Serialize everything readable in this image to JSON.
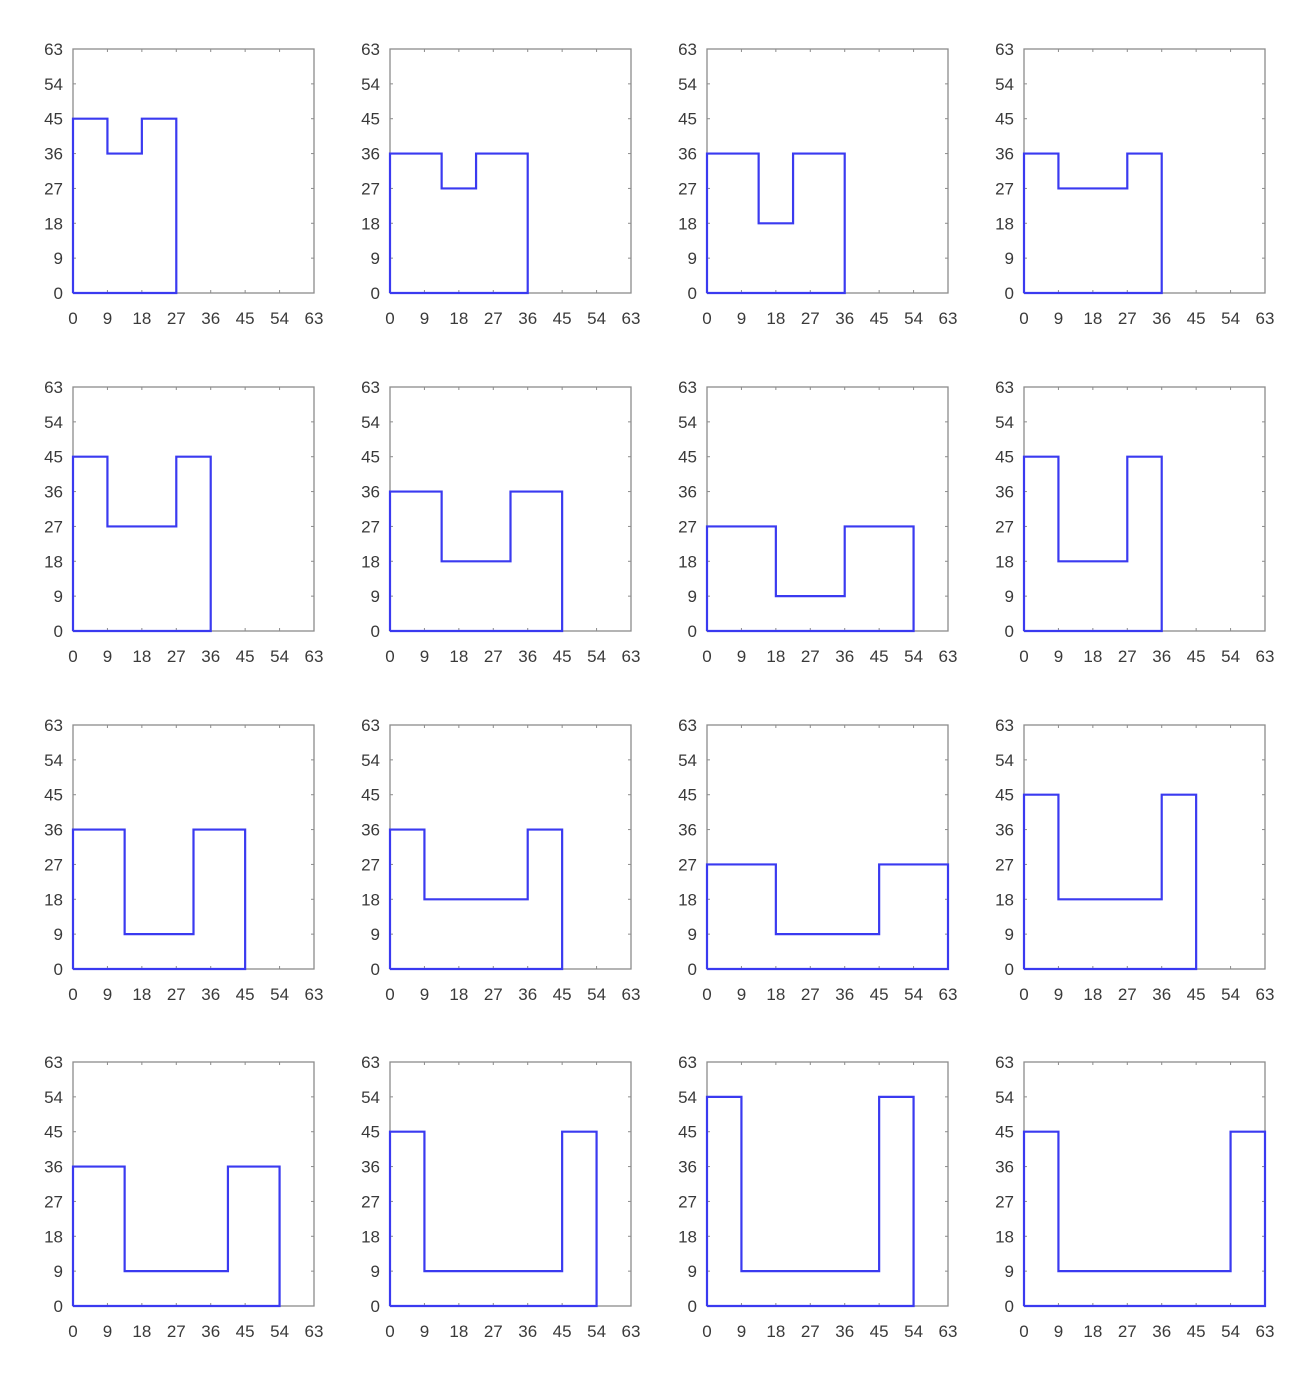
{
  "chart_data": [
    {
      "type": "line",
      "xlim": [
        0,
        63
      ],
      "ylim": [
        0,
        63
      ],
      "grid": false,
      "xticks": [
        "0",
        "9",
        "18",
        "27",
        "36",
        "45",
        "54",
        "63"
      ],
      "yticks": [
        "0",
        "9",
        "18",
        "27",
        "36",
        "45",
        "54",
        "63"
      ],
      "x": [
        0,
        0,
        9,
        9,
        18,
        18,
        27,
        27,
        0
      ],
      "y": [
        0,
        45,
        45,
        36,
        36,
        45,
        45,
        0,
        0
      ]
    },
    {
      "type": "line",
      "xlim": [
        0,
        63
      ],
      "ylim": [
        0,
        63
      ],
      "grid": false,
      "xticks": [
        "0",
        "9",
        "18",
        "27",
        "36",
        "45",
        "54",
        "63"
      ],
      "yticks": [
        "0",
        "9",
        "18",
        "27",
        "36",
        "45",
        "54",
        "63"
      ],
      "x": [
        0,
        0,
        13.5,
        13.5,
        22.5,
        22.5,
        36,
        36,
        0
      ],
      "y": [
        0,
        36,
        36,
        27,
        27,
        36,
        36,
        0,
        0
      ]
    },
    {
      "type": "line",
      "xlim": [
        0,
        63
      ],
      "ylim": [
        0,
        63
      ],
      "grid": false,
      "xticks": [
        "0",
        "9",
        "18",
        "27",
        "36",
        "45",
        "54",
        "63"
      ],
      "yticks": [
        "0",
        "9",
        "18",
        "27",
        "36",
        "45",
        "54",
        "63"
      ],
      "x": [
        0,
        0,
        13.5,
        13.5,
        22.5,
        22.5,
        36,
        36,
        0
      ],
      "y": [
        0,
        36,
        36,
        18,
        18,
        36,
        36,
        0,
        0
      ]
    },
    {
      "type": "line",
      "xlim": [
        0,
        63
      ],
      "ylim": [
        0,
        63
      ],
      "grid": false,
      "xticks": [
        "0",
        "9",
        "18",
        "27",
        "36",
        "45",
        "54",
        "63"
      ],
      "yticks": [
        "0",
        "9",
        "18",
        "27",
        "36",
        "45",
        "54",
        "63"
      ],
      "x": [
        0,
        0,
        9,
        9,
        27,
        27,
        36,
        36,
        0
      ],
      "y": [
        0,
        36,
        36,
        27,
        27,
        36,
        36,
        0,
        0
      ]
    },
    {
      "type": "line",
      "xlim": [
        0,
        63
      ],
      "ylim": [
        0,
        63
      ],
      "grid": false,
      "xticks": [
        "0",
        "9",
        "18",
        "27",
        "36",
        "45",
        "54",
        "63"
      ],
      "yticks": [
        "0",
        "9",
        "18",
        "27",
        "36",
        "45",
        "54",
        "63"
      ],
      "x": [
        0,
        0,
        9,
        9,
        27,
        27,
        36,
        36,
        0
      ],
      "y": [
        0,
        45,
        45,
        27,
        27,
        45,
        45,
        0,
        0
      ]
    },
    {
      "type": "line",
      "xlim": [
        0,
        63
      ],
      "ylim": [
        0,
        63
      ],
      "grid": false,
      "xticks": [
        "0",
        "9",
        "18",
        "27",
        "36",
        "45",
        "54",
        "63"
      ],
      "yticks": [
        "0",
        "9",
        "18",
        "27",
        "36",
        "45",
        "54",
        "63"
      ],
      "x": [
        0,
        0,
        13.5,
        13.5,
        31.5,
        31.5,
        45,
        45,
        0
      ],
      "y": [
        0,
        36,
        36,
        18,
        18,
        36,
        36,
        0,
        0
      ]
    },
    {
      "type": "line",
      "xlim": [
        0,
        63
      ],
      "ylim": [
        0,
        63
      ],
      "grid": false,
      "xticks": [
        "0",
        "9",
        "18",
        "27",
        "36",
        "45",
        "54",
        "63"
      ],
      "yticks": [
        "0",
        "9",
        "18",
        "27",
        "36",
        "45",
        "54",
        "63"
      ],
      "x": [
        0,
        0,
        18,
        18,
        36,
        36,
        54,
        54,
        0
      ],
      "y": [
        0,
        27,
        27,
        9,
        9,
        27,
        27,
        0,
        0
      ]
    },
    {
      "type": "line",
      "xlim": [
        0,
        63
      ],
      "ylim": [
        0,
        63
      ],
      "grid": false,
      "xticks": [
        "0",
        "9",
        "18",
        "27",
        "36",
        "45",
        "54",
        "63"
      ],
      "yticks": [
        "0",
        "9",
        "18",
        "27",
        "36",
        "45",
        "54",
        "63"
      ],
      "x": [
        0,
        0,
        9,
        9,
        27,
        27,
        36,
        36,
        0
      ],
      "y": [
        0,
        45,
        45,
        18,
        18,
        45,
        45,
        0,
        0
      ]
    },
    {
      "type": "line",
      "xlim": [
        0,
        63
      ],
      "ylim": [
        0,
        63
      ],
      "grid": false,
      "xticks": [
        "0",
        "9",
        "18",
        "27",
        "36",
        "45",
        "54",
        "63"
      ],
      "yticks": [
        "0",
        "9",
        "18",
        "27",
        "36",
        "45",
        "54",
        "63"
      ],
      "x": [
        0,
        0,
        13.5,
        13.5,
        31.5,
        31.5,
        45,
        45,
        0
      ],
      "y": [
        0,
        36,
        36,
        9,
        9,
        36,
        36,
        0,
        0
      ]
    },
    {
      "type": "line",
      "xlim": [
        0,
        63
      ],
      "ylim": [
        0,
        63
      ],
      "grid": false,
      "xticks": [
        "0",
        "9",
        "18",
        "27",
        "36",
        "45",
        "54",
        "63"
      ],
      "yticks": [
        "0",
        "9",
        "18",
        "27",
        "36",
        "45",
        "54",
        "63"
      ],
      "x": [
        0,
        0,
        9,
        9,
        36,
        36,
        45,
        45,
        0
      ],
      "y": [
        0,
        36,
        36,
        18,
        18,
        36,
        36,
        0,
        0
      ]
    },
    {
      "type": "line",
      "xlim": [
        0,
        63
      ],
      "ylim": [
        0,
        63
      ],
      "grid": false,
      "xticks": [
        "0",
        "9",
        "18",
        "27",
        "36",
        "45",
        "54",
        "63"
      ],
      "yticks": [
        "0",
        "9",
        "18",
        "27",
        "36",
        "45",
        "54",
        "63"
      ],
      "x": [
        0,
        0,
        18,
        18,
        45,
        45,
        63,
        63,
        0
      ],
      "y": [
        0,
        27,
        27,
        9,
        9,
        27,
        27,
        0,
        0
      ]
    },
    {
      "type": "line",
      "xlim": [
        0,
        63
      ],
      "ylim": [
        0,
        63
      ],
      "grid": false,
      "xticks": [
        "0",
        "9",
        "18",
        "27",
        "36",
        "45",
        "54",
        "63"
      ],
      "yticks": [
        "0",
        "9",
        "18",
        "27",
        "36",
        "45",
        "54",
        "63"
      ],
      "x": [
        0,
        0,
        9,
        9,
        36,
        36,
        45,
        45,
        0
      ],
      "y": [
        0,
        45,
        45,
        18,
        18,
        45,
        45,
        0,
        0
      ]
    },
    {
      "type": "line",
      "xlim": [
        0,
        63
      ],
      "ylim": [
        0,
        63
      ],
      "grid": false,
      "xticks": [
        "0",
        "9",
        "18",
        "27",
        "36",
        "45",
        "54",
        "63"
      ],
      "yticks": [
        "0",
        "9",
        "18",
        "27",
        "36",
        "45",
        "54",
        "63"
      ],
      "x": [
        0,
        0,
        13.5,
        13.5,
        40.5,
        40.5,
        54,
        54,
        0
      ],
      "y": [
        0,
        36,
        36,
        9,
        9,
        36,
        36,
        0,
        0
      ]
    },
    {
      "type": "line",
      "xlim": [
        0,
        63
      ],
      "ylim": [
        0,
        63
      ],
      "grid": false,
      "xticks": [
        "0",
        "9",
        "18",
        "27",
        "36",
        "45",
        "54",
        "63"
      ],
      "yticks": [
        "0",
        "9",
        "18",
        "27",
        "36",
        "45",
        "54",
        "63"
      ],
      "x": [
        0,
        0,
        9,
        9,
        45,
        45,
        54,
        54,
        0
      ],
      "y": [
        0,
        45,
        45,
        9,
        9,
        45,
        45,
        0,
        0
      ]
    },
    {
      "type": "line",
      "xlim": [
        0,
        63
      ],
      "ylim": [
        0,
        63
      ],
      "grid": false,
      "xticks": [
        "0",
        "9",
        "18",
        "27",
        "36",
        "45",
        "54",
        "63"
      ],
      "yticks": [
        "0",
        "9",
        "18",
        "27",
        "36",
        "45",
        "54",
        "63"
      ],
      "x": [
        0,
        0,
        9,
        9,
        45,
        45,
        54,
        54,
        0
      ],
      "y": [
        0,
        54,
        54,
        9,
        9,
        54,
        54,
        0,
        0
      ]
    },
    {
      "type": "line",
      "xlim": [
        0,
        63
      ],
      "ylim": [
        0,
        63
      ],
      "grid": false,
      "xticks": [
        "0",
        "9",
        "18",
        "27",
        "36",
        "45",
        "54",
        "63"
      ],
      "yticks": [
        "0",
        "9",
        "18",
        "27",
        "36",
        "45",
        "54",
        "63"
      ],
      "x": [
        0,
        0,
        9,
        9,
        54,
        54,
        63,
        63,
        0
      ],
      "y": [
        0,
        45,
        45,
        9,
        9,
        45,
        45,
        0,
        0
      ]
    }
  ],
  "colors": {
    "line": "#3a3af0",
    "axes": "#8c8c8c",
    "tick_text": "#3a3a3a"
  }
}
